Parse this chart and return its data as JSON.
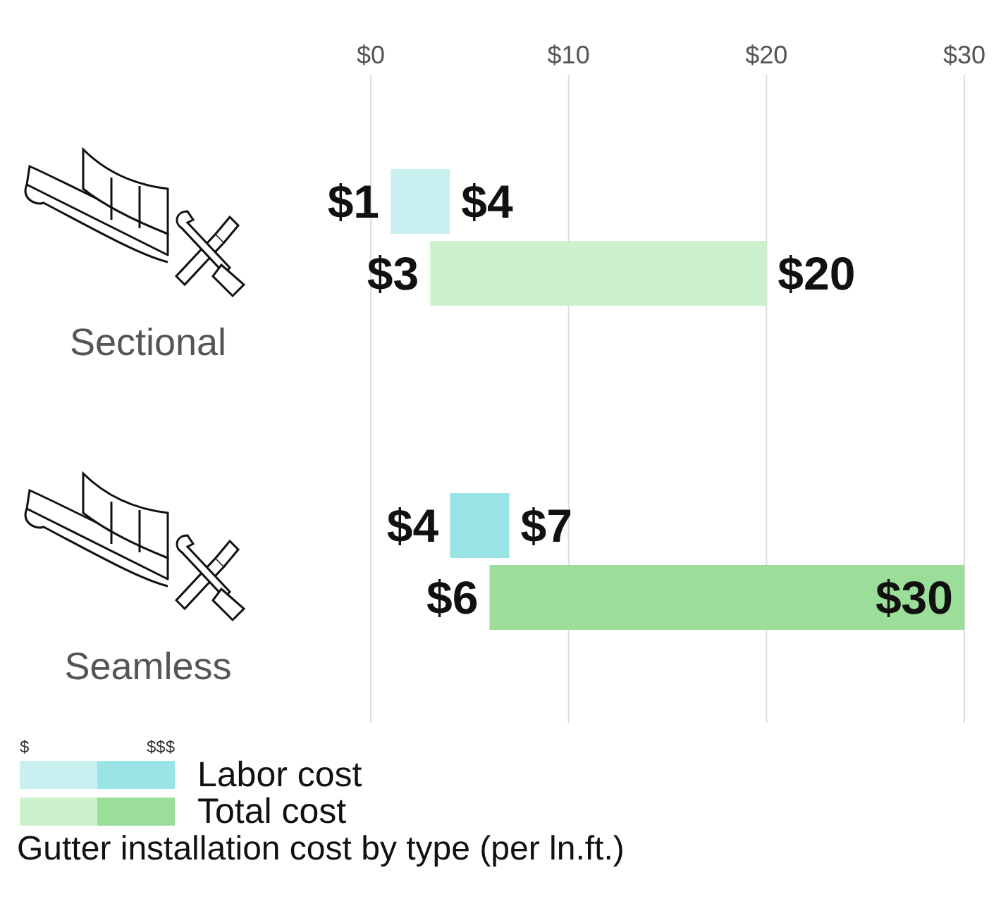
{
  "chart_data": {
    "type": "bar",
    "orientation": "horizontal",
    "title": "Gutter installation cost by type (per ln.ft.)",
    "categories": [
      "Sectional",
      "Seamless"
    ],
    "series": [
      {
        "name": "Labor cost",
        "base": [
          1,
          4
        ],
        "values": [
          3,
          3
        ],
        "colors": [
          "#c9eff0",
          "#9be4e6"
        ]
      },
      {
        "name": "Total cost",
        "base": [
          3,
          6
        ],
        "values": [
          17,
          24
        ],
        "colors": [
          "#cdf1cc",
          "#9ade9a"
        ]
      }
    ],
    "xlim": [
      0,
      30
    ],
    "xticks": [
      {
        "value": 0,
        "label": "$0"
      },
      {
        "value": 10,
        "label": "$10"
      },
      {
        "value": 20,
        "label": "$20"
      },
      {
        "value": 30,
        "label": "$30"
      }
    ],
    "grid": "x",
    "legend": "bottom",
    "annotations": [
      "$1",
      "$4",
      "$3",
      "$20",
      "$4",
      "$7",
      "$6",
      "$30",
      "$",
      "$$$"
    ]
  }
}
